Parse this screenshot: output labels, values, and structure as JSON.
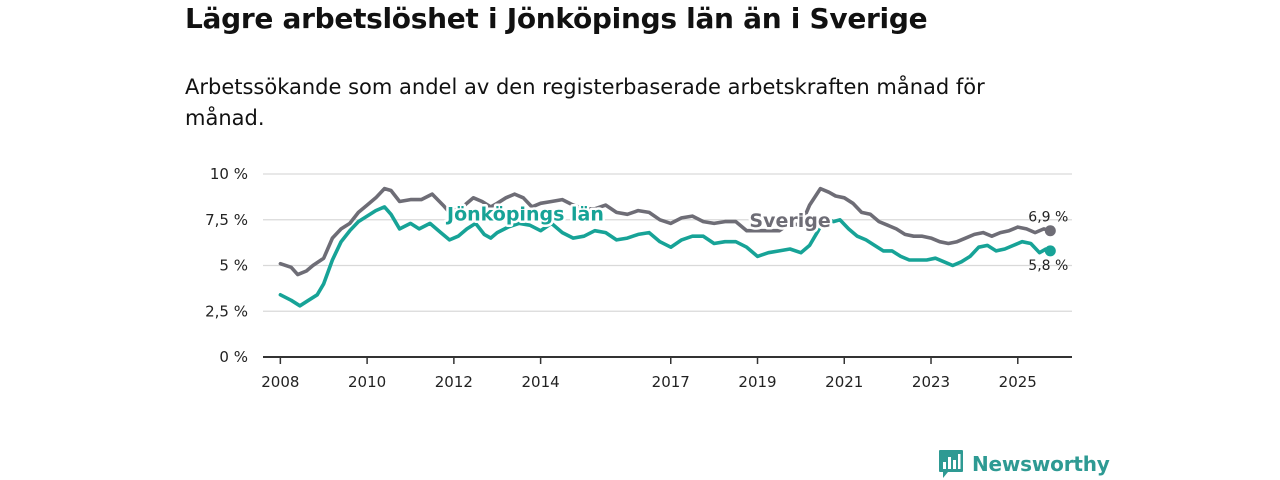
{
  "colors": {
    "sverige": "#6e6d76",
    "jonkoping": "#17a397",
    "grid": "#d9d9d9",
    "axis": "#333333",
    "brand": "#2e9a93"
  },
  "brand": {
    "name": "Newsworthy",
    "icon": "bar-chart-speech-bubble-icon"
  },
  "chart_data": {
    "type": "line",
    "title": "Lägre arbetslöshet i Jönköpings län än i Sverige",
    "subtitle": "Arbetssökande som andel av den registerbaserade arbetskraften månad för månad.",
    "xlabel": "",
    "ylabel": "",
    "ylim": [
      0,
      10
    ],
    "xlim": [
      2007.6,
      2026.25
    ],
    "y_ticks": [
      0,
      2.5,
      5,
      7.5,
      10
    ],
    "y_tick_labels": [
      "0 %",
      "2,5 %",
      "5 %",
      "7,5 %",
      "10 %"
    ],
    "x_ticks": [
      2008,
      2010,
      2012,
      2014,
      2017,
      2019,
      2021,
      2023,
      2025
    ],
    "x_tick_labels": [
      "2008",
      "2010",
      "2012",
      "2014",
      "2017",
      "2019",
      "2021",
      "2023",
      "2025"
    ],
    "grid": true,
    "series": [
      {
        "name": "Sverige",
        "color": "#6e6d76",
        "end_label": "6,9 %",
        "points": [
          [
            2008.0,
            5.1
          ],
          [
            2008.25,
            4.9
          ],
          [
            2008.4,
            4.5
          ],
          [
            2008.6,
            4.7
          ],
          [
            2008.75,
            5.0
          ],
          [
            2009.0,
            5.4
          ],
          [
            2009.2,
            6.5
          ],
          [
            2009.4,
            7.0
          ],
          [
            2009.6,
            7.3
          ],
          [
            2009.8,
            7.9
          ],
          [
            2010.0,
            8.3
          ],
          [
            2010.2,
            8.7
          ],
          [
            2010.4,
            9.2
          ],
          [
            2010.55,
            9.1
          ],
          [
            2010.75,
            8.5
          ],
          [
            2011.0,
            8.6
          ],
          [
            2011.25,
            8.6
          ],
          [
            2011.5,
            8.9
          ],
          [
            2011.75,
            8.3
          ],
          [
            2011.9,
            7.9
          ],
          [
            2012.0,
            8.0
          ],
          [
            2012.25,
            8.3
          ],
          [
            2012.45,
            8.7
          ],
          [
            2012.65,
            8.5
          ],
          [
            2012.85,
            8.2
          ],
          [
            2013.0,
            8.4
          ],
          [
            2013.2,
            8.7
          ],
          [
            2013.4,
            8.9
          ],
          [
            2013.6,
            8.7
          ],
          [
            2013.8,
            8.2
          ],
          [
            2014.0,
            8.4
          ],
          [
            2014.25,
            8.5
          ],
          [
            2014.5,
            8.6
          ],
          [
            2014.75,
            8.3
          ],
          [
            2015.0,
            8.1
          ],
          [
            2015.25,
            8.1
          ],
          [
            2015.5,
            8.3
          ],
          [
            2015.75,
            7.9
          ],
          [
            2016.0,
            7.8
          ],
          [
            2016.25,
            8.0
          ],
          [
            2016.5,
            7.9
          ],
          [
            2016.75,
            7.5
          ],
          [
            2017.0,
            7.3
          ],
          [
            2017.25,
            7.6
          ],
          [
            2017.5,
            7.7
          ],
          [
            2017.75,
            7.4
          ],
          [
            2018.0,
            7.3
          ],
          [
            2018.25,
            7.4
          ],
          [
            2018.5,
            7.4
          ],
          [
            2018.75,
            6.9
          ],
          [
            2019.0,
            6.9
          ],
          [
            2019.25,
            6.9
          ],
          [
            2019.5,
            6.9
          ],
          [
            2019.75,
            7.3
          ],
          [
            2020.0,
            7.2
          ],
          [
            2020.2,
            8.3
          ],
          [
            2020.45,
            9.2
          ],
          [
            2020.65,
            9.0
          ],
          [
            2020.8,
            8.8
          ],
          [
            2021.0,
            8.7
          ],
          [
            2021.2,
            8.4
          ],
          [
            2021.4,
            7.9
          ],
          [
            2021.6,
            7.8
          ],
          [
            2021.8,
            7.4
          ],
          [
            2022.0,
            7.2
          ],
          [
            2022.2,
            7.0
          ],
          [
            2022.4,
            6.7
          ],
          [
            2022.6,
            6.6
          ],
          [
            2022.8,
            6.6
          ],
          [
            2023.0,
            6.5
          ],
          [
            2023.2,
            6.3
          ],
          [
            2023.4,
            6.2
          ],
          [
            2023.6,
            6.3
          ],
          [
            2023.8,
            6.5
          ],
          [
            2024.0,
            6.7
          ],
          [
            2024.2,
            6.8
          ],
          [
            2024.4,
            6.6
          ],
          [
            2024.6,
            6.8
          ],
          [
            2024.8,
            6.9
          ],
          [
            2025.0,
            7.1
          ],
          [
            2025.2,
            7.0
          ],
          [
            2025.4,
            6.8
          ],
          [
            2025.6,
            7.0
          ],
          [
            2025.75,
            6.9
          ]
        ]
      },
      {
        "name": "Jönköpings län",
        "color": "#17a397",
        "end_label": "5,8 %",
        "points": [
          [
            2008.0,
            3.4
          ],
          [
            2008.25,
            3.1
          ],
          [
            2008.45,
            2.8
          ],
          [
            2008.65,
            3.1
          ],
          [
            2008.85,
            3.4
          ],
          [
            2009.0,
            4.0
          ],
          [
            2009.2,
            5.3
          ],
          [
            2009.4,
            6.3
          ],
          [
            2009.6,
            6.9
          ],
          [
            2009.8,
            7.4
          ],
          [
            2010.0,
            7.7
          ],
          [
            2010.2,
            8.0
          ],
          [
            2010.4,
            8.2
          ],
          [
            2010.55,
            7.8
          ],
          [
            2010.75,
            7.0
          ],
          [
            2011.0,
            7.3
          ],
          [
            2011.2,
            7.0
          ],
          [
            2011.45,
            7.3
          ],
          [
            2011.7,
            6.8
          ],
          [
            2011.9,
            6.4
          ],
          [
            2012.1,
            6.6
          ],
          [
            2012.3,
            7.0
          ],
          [
            2012.5,
            7.3
          ],
          [
            2012.7,
            6.7
          ],
          [
            2012.85,
            6.5
          ],
          [
            2013.0,
            6.8
          ],
          [
            2013.25,
            7.1
          ],
          [
            2013.5,
            7.3
          ],
          [
            2013.75,
            7.2
          ],
          [
            2014.0,
            6.9
          ],
          [
            2014.25,
            7.3
          ],
          [
            2014.5,
            6.8
          ],
          [
            2014.75,
            6.5
          ],
          [
            2015.0,
            6.6
          ],
          [
            2015.25,
            6.9
          ],
          [
            2015.5,
            6.8
          ],
          [
            2015.75,
            6.4
          ],
          [
            2016.0,
            6.5
          ],
          [
            2016.25,
            6.7
          ],
          [
            2016.5,
            6.8
          ],
          [
            2016.75,
            6.3
          ],
          [
            2017.0,
            6.0
          ],
          [
            2017.25,
            6.4
          ],
          [
            2017.5,
            6.6
          ],
          [
            2017.75,
            6.6
          ],
          [
            2018.0,
            6.2
          ],
          [
            2018.25,
            6.3
          ],
          [
            2018.5,
            6.3
          ],
          [
            2018.75,
            6.0
          ],
          [
            2019.0,
            5.5
          ],
          [
            2019.25,
            5.7
          ],
          [
            2019.5,
            5.8
          ],
          [
            2019.75,
            5.9
          ],
          [
            2020.0,
            5.7
          ],
          [
            2020.2,
            6.1
          ],
          [
            2020.4,
            6.9
          ],
          [
            2020.55,
            7.6
          ],
          [
            2020.75,
            7.4
          ],
          [
            2020.9,
            7.5
          ],
          [
            2021.1,
            7.0
          ],
          [
            2021.3,
            6.6
          ],
          [
            2021.5,
            6.4
          ],
          [
            2021.7,
            6.1
          ],
          [
            2021.9,
            5.8
          ],
          [
            2022.1,
            5.8
          ],
          [
            2022.3,
            5.5
          ],
          [
            2022.5,
            5.3
          ],
          [
            2022.7,
            5.3
          ],
          [
            2022.9,
            5.3
          ],
          [
            2023.1,
            5.4
          ],
          [
            2023.3,
            5.2
          ],
          [
            2023.5,
            5.0
          ],
          [
            2023.7,
            5.2
          ],
          [
            2023.9,
            5.5
          ],
          [
            2024.1,
            6.0
          ],
          [
            2024.3,
            6.1
          ],
          [
            2024.5,
            5.8
          ],
          [
            2024.7,
            5.9
          ],
          [
            2024.9,
            6.1
          ],
          [
            2025.1,
            6.3
          ],
          [
            2025.3,
            6.2
          ],
          [
            2025.5,
            5.7
          ],
          [
            2025.65,
            5.9
          ],
          [
            2025.75,
            5.8
          ]
        ]
      }
    ]
  }
}
